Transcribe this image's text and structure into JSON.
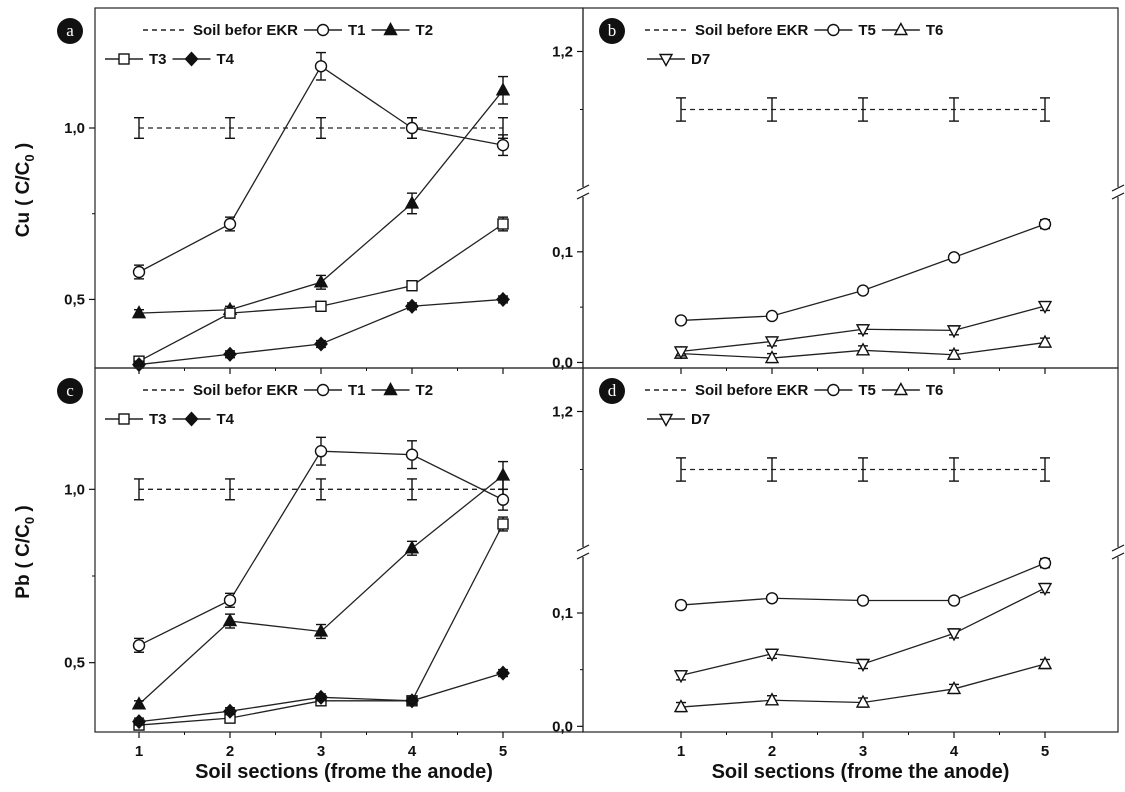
{
  "chart_data": [
    {
      "type": "line",
      "panel_label": "a",
      "ylabel_main": "Cu",
      "ylabel_paren": "( C/C",
      "ylabel_sub": "0",
      "ylabel_close": " )",
      "xlabel": "",
      "ylim": [
        0.3,
        1.35
      ],
      "yticks": [
        {
          "value": 0.5,
          "label": "0,5"
        },
        {
          "value": 1.0,
          "label": "1,0"
        }
      ],
      "x": [
        1,
        2,
        3,
        4,
        5
      ],
      "xtick_labels": [
        "",
        "",
        "",
        "",
        ""
      ],
      "legend_rows": [
        [
          "s0",
          "s1",
          "s2"
        ],
        [
          "s3",
          "s4"
        ]
      ],
      "series": [
        {
          "key": "s0",
          "name": "Soil befor EKR",
          "style": "dashed",
          "marker": "none",
          "values": [
            1.0,
            1.0,
            1.0,
            1.0,
            1.0
          ],
          "err": [
            0.03,
            0.03,
            0.03,
            0.03,
            0.03
          ]
        },
        {
          "key": "s1",
          "name": "T1",
          "style": "solid",
          "marker": "circle",
          "values": [
            0.58,
            0.72,
            1.18,
            1.0,
            0.95
          ],
          "err": [
            0.02,
            0.02,
            0.04,
            0.03,
            0.03
          ]
        },
        {
          "key": "s2",
          "name": "T2",
          "style": "solid",
          "marker": "triangle-up-filled",
          "values": [
            0.46,
            0.47,
            0.55,
            0.78,
            1.11
          ],
          "err": [
            0.01,
            0.01,
            0.02,
            0.03,
            0.04
          ]
        },
        {
          "key": "s3",
          "name": "T3",
          "style": "solid",
          "marker": "square",
          "values": [
            0.32,
            0.46,
            0.48,
            0.54,
            0.72
          ],
          "err": [
            0.01,
            0.01,
            0.01,
            0.01,
            0.02
          ]
        },
        {
          "key": "s4",
          "name": "T4",
          "style": "solid",
          "marker": "diamond-filled",
          "values": [
            0.31,
            0.34,
            0.37,
            0.48,
            0.5
          ],
          "err": [
            0.01,
            0.01,
            0.01,
            0.01,
            0.01
          ]
        }
      ]
    },
    {
      "type": "line",
      "panel_label": "b",
      "ylabel_main": "",
      "ylabel_paren": "",
      "ylabel_sub": "",
      "ylabel_close": "",
      "xlabel": "",
      "broken_axis": true,
      "ylim_lower": [
        -0.005,
        0.145
      ],
      "ylim_upper": [
        0.75,
        1.35
      ],
      "yticks": [
        {
          "value": 0.0,
          "label": "0,0"
        },
        {
          "value": 0.1,
          "label": "0,1"
        },
        {
          "value": 1.2,
          "label": "1,2"
        }
      ],
      "x": [
        1,
        2,
        3,
        4,
        5
      ],
      "xtick_labels": [
        "",
        "",
        "",
        "",
        ""
      ],
      "legend_rows": [
        [
          "s0",
          "s1",
          "s2"
        ],
        [
          "s3"
        ]
      ],
      "series": [
        {
          "key": "s0",
          "name": "Soil before EKR",
          "style": "dashed",
          "marker": "none",
          "values": [
            1.0,
            1.0,
            1.0,
            1.0,
            1.0
          ],
          "err": [
            0.04,
            0.04,
            0.04,
            0.04,
            0.04
          ]
        },
        {
          "key": "s1",
          "name": "T5",
          "style": "solid",
          "marker": "circle",
          "values": [
            0.038,
            0.042,
            0.065,
            0.095,
            0.125
          ],
          "err": [
            0.002,
            0.002,
            0.002,
            0.003,
            0.004
          ]
        },
        {
          "key": "s2",
          "name": "T6",
          "style": "solid",
          "marker": "triangle-up",
          "values": [
            0.008,
            0.004,
            0.011,
            0.007,
            0.018
          ],
          "err": [
            0.004,
            0.004,
            0.004,
            0.004,
            0.004
          ]
        },
        {
          "key": "s3",
          "name": "D7",
          "style": "solid",
          "marker": "triangle-down",
          "values": [
            0.01,
            0.019,
            0.03,
            0.029,
            0.051
          ],
          "err": [
            0.004,
            0.004,
            0.004,
            0.004,
            0.004
          ]
        }
      ]
    },
    {
      "type": "line",
      "panel_label": "c",
      "ylabel_main": "Pb",
      "ylabel_paren": "( C/C",
      "ylabel_sub": "0",
      "ylabel_close": " )",
      "xlabel": "Soil sections (frome the anode)",
      "ylim": [
        0.3,
        1.35
      ],
      "yticks": [
        {
          "value": 0.5,
          "label": "0,5"
        },
        {
          "value": 1.0,
          "label": "1,0"
        }
      ],
      "x": [
        1,
        2,
        3,
        4,
        5
      ],
      "xtick_labels": [
        "1",
        "2",
        "3",
        "4",
        "5"
      ],
      "legend_rows": [
        [
          "s0",
          "s1",
          "s2"
        ],
        [
          "s3",
          "s4"
        ]
      ],
      "series": [
        {
          "key": "s0",
          "name": "Soil befor EKR",
          "style": "dashed",
          "marker": "none",
          "values": [
            1.0,
            1.0,
            1.0,
            1.0,
            1.0
          ],
          "err": [
            0.03,
            0.03,
            0.03,
            0.03,
            0.03
          ]
        },
        {
          "key": "s1",
          "name": "T1",
          "style": "solid",
          "marker": "circle",
          "values": [
            0.55,
            0.68,
            1.11,
            1.1,
            0.97
          ],
          "err": [
            0.02,
            0.02,
            0.04,
            0.04,
            0.03
          ]
        },
        {
          "key": "s2",
          "name": "T2",
          "style": "solid",
          "marker": "triangle-up-filled",
          "values": [
            0.38,
            0.62,
            0.59,
            0.83,
            1.04
          ],
          "err": [
            0.01,
            0.02,
            0.02,
            0.02,
            0.04
          ]
        },
        {
          "key": "s3",
          "name": "T3",
          "style": "solid",
          "marker": "square",
          "values": [
            0.32,
            0.34,
            0.39,
            0.39,
            0.9
          ],
          "err": [
            0.01,
            0.01,
            0.01,
            0.01,
            0.02
          ]
        },
        {
          "key": "s4",
          "name": "T4",
          "style": "solid",
          "marker": "diamond-filled",
          "values": [
            0.33,
            0.36,
            0.4,
            0.39,
            0.47
          ],
          "err": [
            0.01,
            0.01,
            0.01,
            0.01,
            0.01
          ]
        }
      ]
    },
    {
      "type": "line",
      "panel_label": "d",
      "ylabel_main": "",
      "ylabel_paren": "",
      "ylabel_sub": "",
      "ylabel_close": "",
      "xlabel": "Soil sections (frome the anode)",
      "broken_axis": true,
      "ylim_lower": [
        -0.005,
        0.145
      ],
      "ylim_upper": [
        0.75,
        1.35
      ],
      "yticks": [
        {
          "value": 0.0,
          "label": "0,0"
        },
        {
          "value": 0.1,
          "label": "0,1"
        },
        {
          "value": 1.2,
          "label": "1,2"
        }
      ],
      "x": [
        1,
        2,
        3,
        4,
        5
      ],
      "xtick_labels": [
        "1",
        "2",
        "3",
        "4",
        "5"
      ],
      "legend_rows": [
        [
          "s0",
          "s1",
          "s2"
        ],
        [
          "s3"
        ]
      ],
      "series": [
        {
          "key": "s0",
          "name": "Soil before EKR",
          "style": "dashed",
          "marker": "none",
          "values": [
            1.0,
            1.0,
            1.0,
            1.0,
            1.0
          ],
          "err": [
            0.04,
            0.04,
            0.04,
            0.04,
            0.04
          ]
        },
        {
          "key": "s1",
          "name": "T5",
          "style": "solid",
          "marker": "circle",
          "values": [
            0.107,
            0.113,
            0.111,
            0.111,
            0.144
          ],
          "err": [
            0.003,
            0.003,
            0.003,
            0.003,
            0.004
          ]
        },
        {
          "key": "s2",
          "name": "T6",
          "style": "solid",
          "marker": "triangle-up",
          "values": [
            0.017,
            0.023,
            0.021,
            0.033,
            0.055
          ],
          "err": [
            0.004,
            0.004,
            0.004,
            0.004,
            0.004
          ]
        },
        {
          "key": "s3",
          "name": "D7",
          "style": "solid",
          "marker": "triangle-down",
          "values": [
            0.045,
            0.064,
            0.055,
            0.082,
            0.122
          ],
          "err": [
            0.004,
            0.004,
            0.004,
            0.004,
            0.004
          ]
        }
      ]
    }
  ]
}
